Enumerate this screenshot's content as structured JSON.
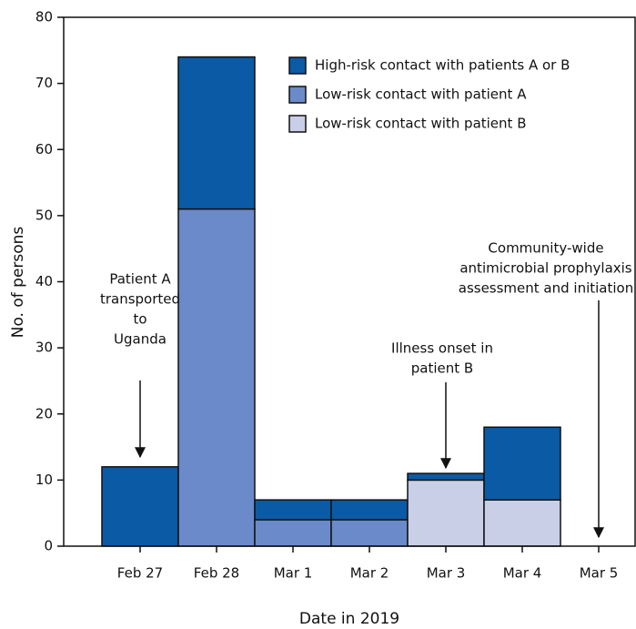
{
  "chart_data": {
    "type": "stacked_bar",
    "categories": [
      "Feb 27",
      "Feb 28",
      "Mar 1",
      "Mar 2",
      "Mar 3",
      "Mar 4",
      "Mar 5"
    ],
    "series": [
      {
        "name": "High-risk contact with patients A or B",
        "color": "#0b5aa5",
        "values": [
          12,
          23,
          3,
          3,
          1,
          11,
          0
        ]
      },
      {
        "name": "Low-risk contact with patient A",
        "color": "#6b8ac9",
        "values": [
          0,
          51,
          4,
          4,
          0,
          0,
          0
        ]
      },
      {
        "name": "Low-risk contact with patient B",
        "color": "#c8cfe6",
        "values": [
          0,
          0,
          0,
          0,
          10,
          7,
          0
        ]
      }
    ],
    "ylim": [
      0,
      80
    ],
    "yticks": [
      0,
      10,
      20,
      30,
      40,
      50,
      60,
      70,
      80
    ],
    "ylabel": "No. of persons",
    "xlabel": "Date in 2019",
    "annotations": [
      {
        "lines": [
          "Patient A",
          "transported",
          "to",
          "Uganda"
        ]
      },
      {
        "lines": [
          "Illness onset in",
          "patient  B"
        ]
      },
      {
        "lines": [
          "Community-wide",
          "antimicrobial prophylaxis",
          "assessment and initiation"
        ]
      }
    ],
    "legend": "upper right"
  }
}
